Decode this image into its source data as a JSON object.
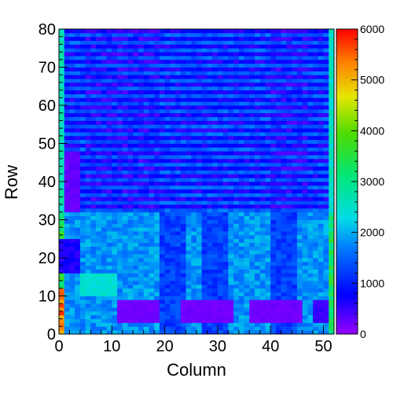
{
  "chart_data": {
    "type": "heatmap",
    "xlabel": "Column",
    "ylabel": "Row",
    "xlim": [
      0,
      52
    ],
    "ylim": [
      0,
      80
    ],
    "x_ticks": [
      "0",
      "10",
      "20",
      "30",
      "40",
      "50"
    ],
    "y_ticks": [
      "0",
      "10",
      "20",
      "30",
      "40",
      "50",
      "60",
      "70",
      "80"
    ],
    "colorbar": {
      "range": [
        0,
        6000
      ],
      "ticks": [
        "0",
        "1000",
        "2000",
        "3000",
        "4000",
        "5000",
        "6000"
      ],
      "palette": "rainbow (violet→blue→cyan→green→yellow→red)"
    },
    "n_columns": 52,
    "n_rows": 80,
    "description": "Per-cell counts by column and row. Upper region (rows ~32–80) alternates row-wise between ~600 and ~1600 (horizontal banding). Lower region (rows 0–31) mostly ~1600–2100 with darker column stripes near columns 19–23, 27–31, 40–44. Dead (~200) rectangles at columns 1–3 rows 32–47, columns 0–3 rows 16–24, and rows 3–8 at columns 11–18, 23–32, 36–45, 48–50. Edge columns (0 and 51) reach ~2500–5800, hottest at column 0 rows 3–11."
  }
}
